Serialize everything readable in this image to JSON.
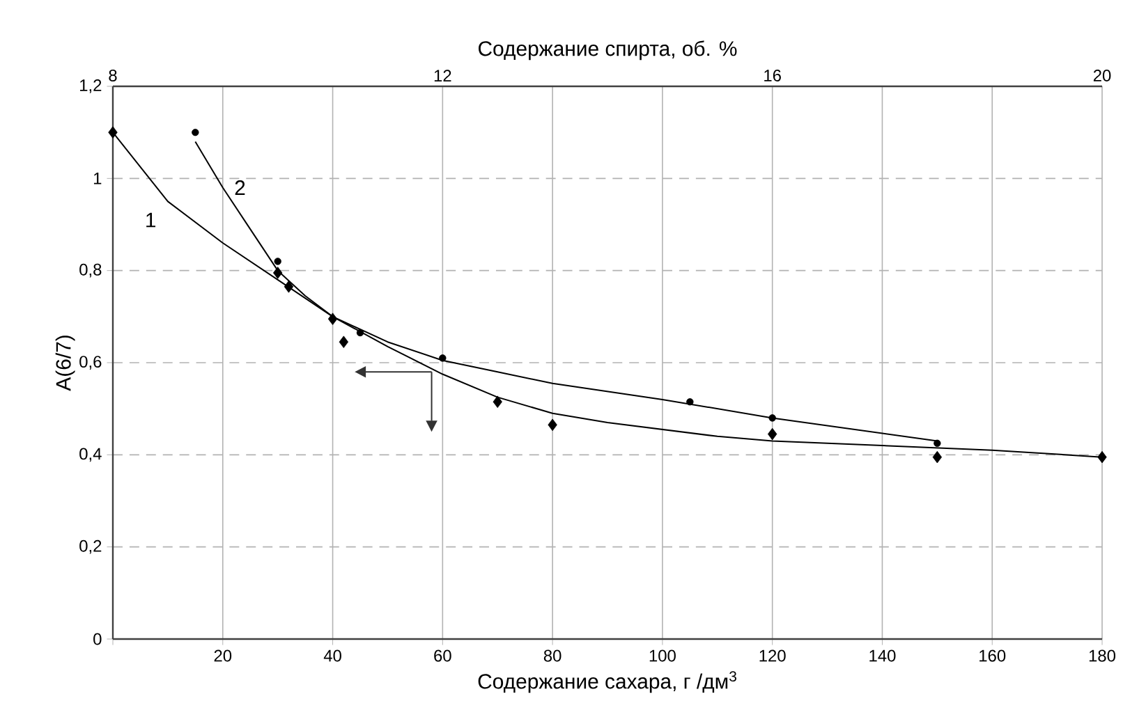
{
  "chart_data": {
    "type": "scatter",
    "xlabel": "Содержание сахара, г /дм$^{3}$",
    "x2label": "Содержание спирта, об. %",
    "ylabel": "A(6/7)",
    "xlim": [
      0,
      180
    ],
    "xticks": [
      {
        "value": 0,
        "label": null
      },
      20,
      40,
      60,
      80,
      100,
      120,
      140,
      160,
      180
    ],
    "x2lim": [
      8,
      20
    ],
    "x2ticks": [
      8,
      12,
      16,
      20
    ],
    "ylim": [
      0,
      1.2
    ],
    "yticks": [
      0,
      {
        "value": 0.2,
        "label": "0,2"
      },
      {
        "value": 0.4,
        "label": "0,4"
      },
      {
        "value": 0.6,
        "label": "0,6"
      },
      {
        "value": 0.8,
        "label": "0,8"
      },
      1,
      {
        "value": 1.2,
        "label": "1,2"
      }
    ],
    "grid": true,
    "series": [
      {
        "color": "#000000",
        "marker": "diamond",
        "x": [
          0,
          30,
          32,
          40,
          42,
          70,
          80,
          120,
          150,
          180
        ],
        "values": [
          1.1,
          0.795,
          0.765,
          0.695,
          0.645,
          0.515,
          0.465,
          0.445,
          0.395,
          0.395
        ]
      },
      {
        "color": "#000000",
        "marker": "circle",
        "x": [
          15,
          30,
          40,
          45,
          60,
          105,
          120,
          150
        ],
        "values": [
          1.1,
          0.82,
          0.695,
          0.665,
          0.61,
          0.515,
          0.48,
          0.425
        ]
      },
      {
        "type": "line",
        "name": "1",
        "color": "#000000",
        "marker": "none",
        "line_style": "solid",
        "x": [
          0,
          10,
          20,
          30,
          40,
          50,
          60,
          70,
          80,
          90,
          100,
          110,
          120,
          140,
          160,
          180
        ],
        "values": [
          1.1,
          0.95,
          0.86,
          0.78,
          0.7,
          0.635,
          0.575,
          0.525,
          0.49,
          0.47,
          0.455,
          0.44,
          0.43,
          0.42,
          0.41,
          0.395
        ]
      },
      {
        "type": "line",
        "name": "2",
        "color": "#000000",
        "marker": "none",
        "line_style": "solid",
        "x": [
          15,
          20,
          25,
          30,
          35,
          40,
          50,
          60,
          70,
          80,
          100,
          120,
          150
        ],
        "values": [
          1.08,
          0.98,
          0.89,
          0.8,
          0.745,
          0.7,
          0.645,
          0.605,
          0.58,
          0.555,
          0.52,
          0.48,
          0.43
        ]
      }
    ]
  }
}
